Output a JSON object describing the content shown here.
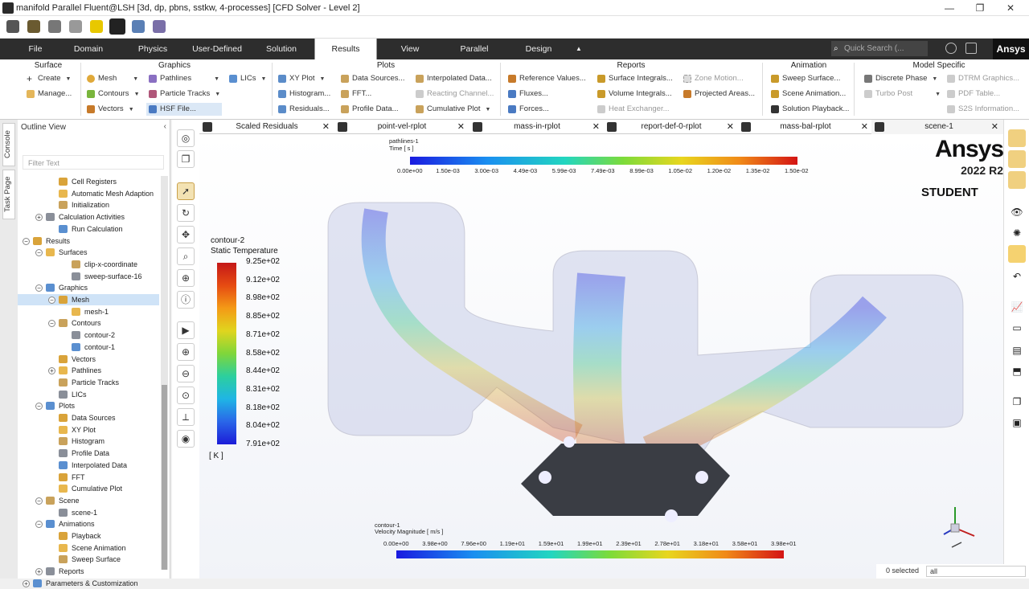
{
  "window": {
    "title": "manifold Parallel Fluent@LSH  [3d, dp, pbns, sstkw, 4-processes] [CFD Solver - Level 2]",
    "minimize": "—",
    "maximize": "❐",
    "close": "✕"
  },
  "menubar": {
    "tabs": [
      "File",
      "Domain",
      "Physics",
      "User-Defined",
      "Solution",
      "Results",
      "View",
      "Parallel",
      "Design"
    ],
    "active_tab": "Results",
    "quick_search_placeholder": "Quick Search (...",
    "brand": "Ansys"
  },
  "ribbon": {
    "groups": [
      "Surface",
      "Graphics",
      "Plots",
      "Reports",
      "Animation",
      "Model Specific"
    ],
    "surface": {
      "create": "Create",
      "manage": "Manage..."
    },
    "graphics": {
      "mesh": "Mesh",
      "contours": "Contours",
      "vectors": "Vectors",
      "pathlines": "Pathlines",
      "particle_tracks": "Particle Tracks",
      "hsf_file": "HSF File...",
      "lics": "LICs"
    },
    "plots": {
      "xy_plot": "XY Plot",
      "histogram": "Histogram...",
      "residuals": "Residuals...",
      "data_sources": "Data Sources...",
      "fft": "FFT...",
      "profile_data": "Profile Data...",
      "interpolated_data": "Interpolated Data...",
      "reacting_channel": "Reacting Channel...",
      "cumulative_plot": "Cumulative Plot"
    },
    "reports": {
      "reference_values": "Reference Values...",
      "fluxes": "Fluxes...",
      "forces": "Forces...",
      "surface_integrals": "Surface Integrals...",
      "volume_integrals": "Volume Integrals...",
      "heat_exchanger": "Heat Exchanger...",
      "zone_motion": "Zone Motion...",
      "projected_areas": "Projected Areas..."
    },
    "animation": {
      "sweep_surface": "Sweep Surface...",
      "scene_animation": "Scene Animation...",
      "solution_playback": "Solution Playback..."
    },
    "model_specific": {
      "discrete_phase": "Discrete Phase",
      "turbo_post": "Turbo Post",
      "dtrm_graphics": "DTRM Graphics...",
      "pdf_table": "PDF Table...",
      "s2s_information": "S2S Information..."
    }
  },
  "side_tabs": [
    "Console",
    "Task Page"
  ],
  "outline": {
    "title": "Outline View",
    "filter_placeholder": "Filter Text",
    "items": [
      {
        "label": "Cell Registers",
        "indent": 2
      },
      {
        "label": "Automatic Mesh Adaption",
        "indent": 2
      },
      {
        "label": "Initialization",
        "indent": 2
      },
      {
        "label": "Calculation Activities",
        "indent": 1,
        "exp": "+"
      },
      {
        "label": "Run Calculation",
        "indent": 2
      },
      {
        "label": "Results",
        "indent": 0,
        "exp": "−"
      },
      {
        "label": "Surfaces",
        "indent": 1,
        "exp": "−"
      },
      {
        "label": "clip-x-coordinate",
        "indent": 3
      },
      {
        "label": "sweep-surface-16",
        "indent": 3
      },
      {
        "label": "Graphics",
        "indent": 1,
        "exp": "−"
      },
      {
        "label": "Mesh",
        "indent": 2,
        "exp": "−",
        "selected": true
      },
      {
        "label": "mesh-1",
        "indent": 3
      },
      {
        "label": "Contours",
        "indent": 2,
        "exp": "−"
      },
      {
        "label": "contour-2",
        "indent": 3
      },
      {
        "label": "contour-1",
        "indent": 3
      },
      {
        "label": "Vectors",
        "indent": 2
      },
      {
        "label": "Pathlines",
        "indent": 2,
        "exp": "+"
      },
      {
        "label": "Particle Tracks",
        "indent": 2
      },
      {
        "label": "LICs",
        "indent": 2
      },
      {
        "label": "Plots",
        "indent": 1,
        "exp": "−"
      },
      {
        "label": "Data Sources",
        "indent": 2
      },
      {
        "label": "XY Plot",
        "indent": 2
      },
      {
        "label": "Histogram",
        "indent": 2
      },
      {
        "label": "Profile Data",
        "indent": 2
      },
      {
        "label": "Interpolated Data",
        "indent": 2
      },
      {
        "label": "FFT",
        "indent": 2
      },
      {
        "label": "Cumulative Plot",
        "indent": 2
      },
      {
        "label": "Scene",
        "indent": 1,
        "exp": "−"
      },
      {
        "label": "scene-1",
        "indent": 2
      },
      {
        "label": "Animations",
        "indent": 1,
        "exp": "−"
      },
      {
        "label": "Playback",
        "indent": 2
      },
      {
        "label": "Scene Animation",
        "indent": 2
      },
      {
        "label": "Sweep Surface",
        "indent": 2
      },
      {
        "label": "Reports",
        "indent": 1,
        "exp": "+"
      },
      {
        "label": "Parameters & Customization",
        "indent": 0,
        "exp": "+"
      }
    ]
  },
  "doc_tabs": [
    "Scaled Residuals",
    "point-vel-rplot",
    "mass-in-rplot",
    "report-def-0-rplot",
    "mass-bal-rplot",
    "scene-1"
  ],
  "viewport": {
    "pathlines_label": "pathlines-1",
    "pathlines_sub": "Time [ s ]",
    "time_ticks": [
      "0.00e+00",
      "1.50e-03",
      "3.00e-03",
      "4.49e-03",
      "5.99e-03",
      "7.49e-03",
      "8.99e-03",
      "1.05e-02",
      "1.20e-02",
      "1.35e-02",
      "1.50e-02"
    ],
    "temp_title": "contour-2",
    "temp_sub": "Static Temperature",
    "temp_ticks": [
      "9.25e+02",
      "9.12e+02",
      "8.98e+02",
      "8.85e+02",
      "8.71e+02",
      "8.58e+02",
      "8.44e+02",
      "8.31e+02",
      "8.18e+02",
      "8.04e+02",
      "7.91e+02"
    ],
    "temp_unit": "[ K ]",
    "vel_label": "contour-1",
    "vel_sub": "Velocity Magnitude [ m/s ]",
    "vel_ticks": [
      "0.00e+00",
      "3.98e+00",
      "7.96e+00",
      "1.19e+01",
      "1.59e+01",
      "1.99e+01",
      "2.39e+01",
      "2.78e+01",
      "3.18e+01",
      "3.58e+01",
      "3.98e+01"
    ],
    "logo": "Ansys",
    "version": "2022 R2",
    "edition": "STUDENT"
  },
  "status": {
    "selected": "0 selected",
    "filter": "all"
  }
}
